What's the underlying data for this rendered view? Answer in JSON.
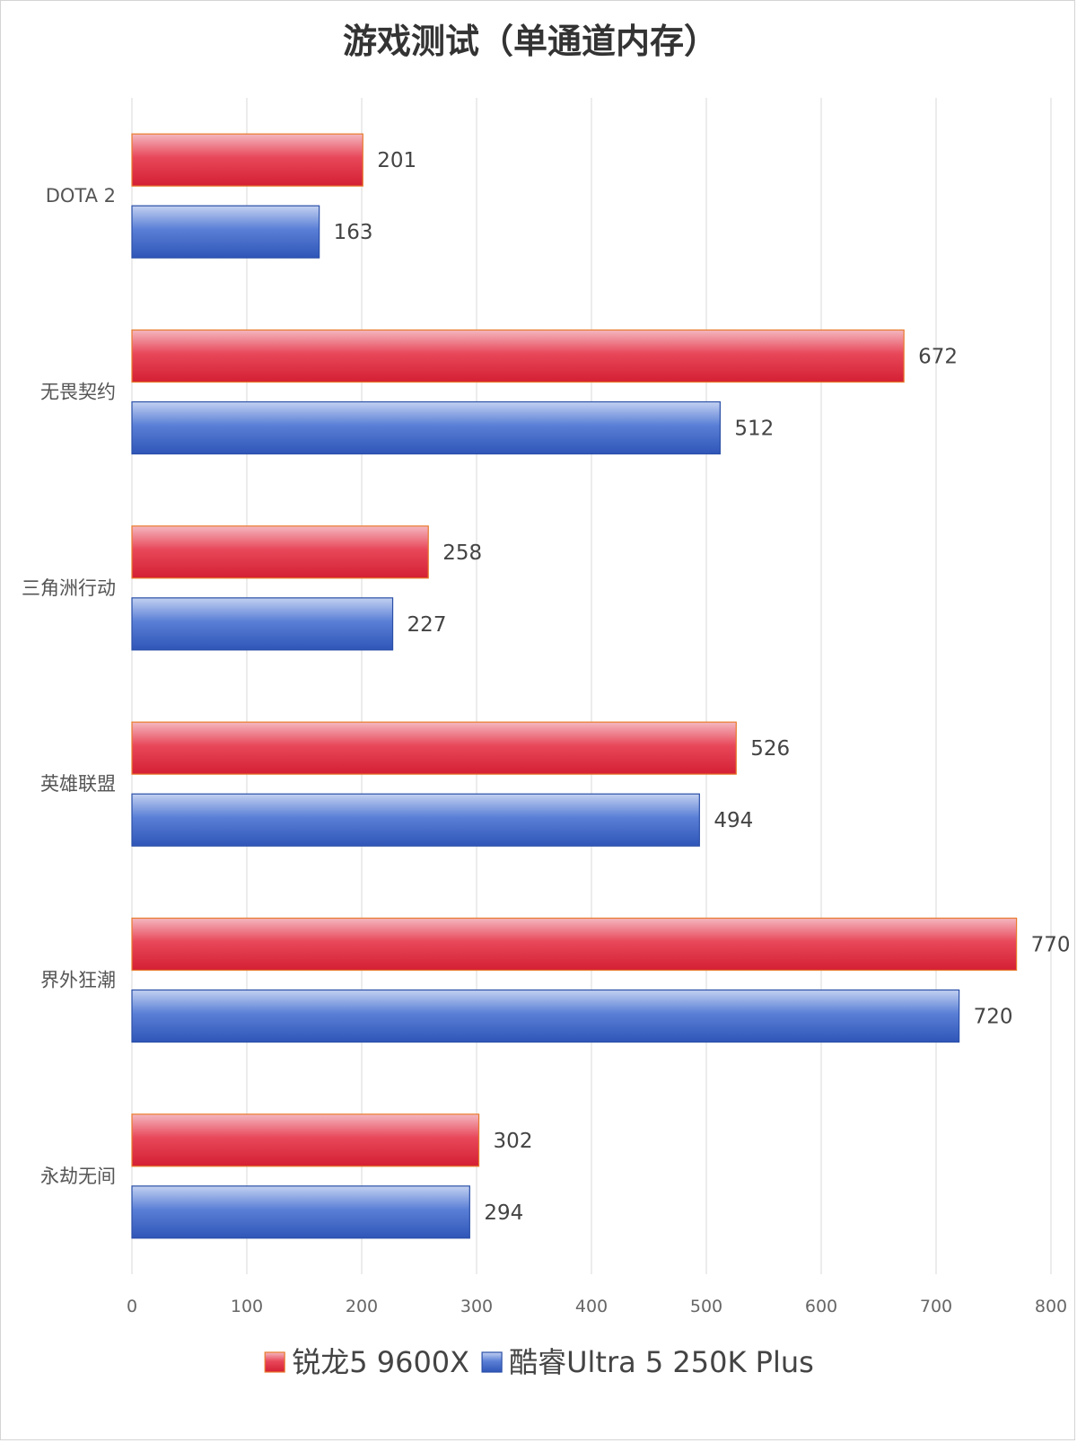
{
  "chart_data": {
    "type": "bar",
    "orientation": "horizontal",
    "title": "游戏测试（单通道内存）",
    "categories": [
      "DOTA 2",
      "无畏契约",
      "三角洲行动",
      "英雄联盟",
      "界外狂潮",
      "永劫无间"
    ],
    "series": [
      {
        "name": "锐龙5 9600X",
        "color": "#e0283c",
        "values": [
          201,
          672,
          258,
          526,
          770,
          302
        ]
      },
      {
        "name": "酷睿Ultra 5 250K Plus",
        "color": "#3a63c4",
        "values": [
          163,
          512,
          227,
          494,
          720,
          294
        ]
      }
    ],
    "xlim": [
      0,
      800
    ],
    "xticks": [
      "0",
      "100",
      "200",
      "300",
      "400",
      "500",
      "600",
      "700",
      "800"
    ],
    "grid": true,
    "legend_position": "bottom"
  }
}
